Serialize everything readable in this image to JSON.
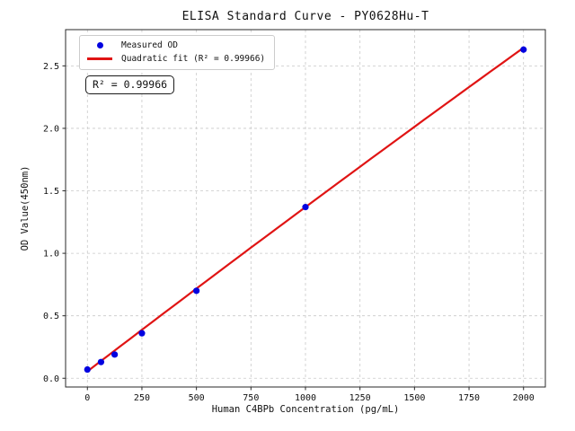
{
  "figure": {
    "background": "#ffffff"
  },
  "legend": {
    "items": [
      {
        "label": "Measured OD",
        "swatch": "dot-marker",
        "color": "#0202e0"
      },
      {
        "label": "Quadratic fit (R² = 0.99966)",
        "swatch": "line-marker",
        "color": "#e01414"
      }
    ]
  },
  "annotation": {
    "text": "R² = 0.99966"
  },
  "chart_data": {
    "type": "scatter",
    "title": "ELISA Standard Curve - PY0628Hu-T",
    "xlabel": "Human C4BPb Concentration (pg/mL)",
    "ylabel": "OD Value(450nm)",
    "xlim": [
      -100,
      2100
    ],
    "ylim": [
      -0.07,
      2.79
    ],
    "x_ticks": [
      0,
      250,
      500,
      750,
      1000,
      1250,
      1500,
      1750,
      2000
    ],
    "y_ticks": [
      0.0,
      0.5,
      1.0,
      1.5,
      2.0,
      2.5
    ],
    "grid": true,
    "grid_style": "dashed",
    "legend_position": "upper left",
    "series": [
      {
        "name": "Measured OD",
        "type": "scatter",
        "color": "#0202e0",
        "marker_radius": 3.6,
        "x": [
          0,
          62.5,
          125,
          250,
          500,
          1000,
          2000
        ],
        "y": [
          0.07,
          0.13,
          0.19,
          0.36,
          0.7,
          1.37,
          2.63
        ]
      },
      {
        "name": "Quadratic fit",
        "type": "line",
        "fit": "quadratic",
        "r_squared": 0.99966,
        "color": "#e01414",
        "line_width": 2.2,
        "coefficients": {
          "a": 0.055,
          "b": 0.001335,
          "c": -2e-08
        },
        "x_range": [
          0,
          2000
        ]
      }
    ],
    "colors": {
      "grid": "#c9c9c9",
      "spine": "#2a2a2a",
      "text": "#111111"
    }
  }
}
